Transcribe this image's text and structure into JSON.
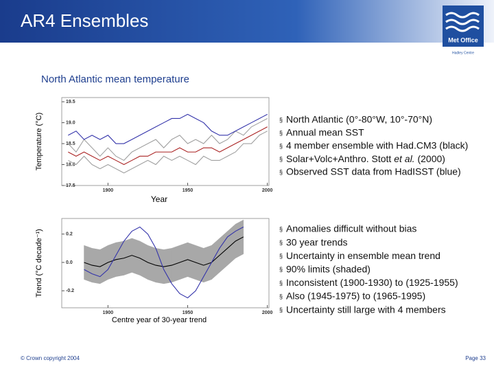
{
  "header": {
    "title": "AR4 Ensembles",
    "logo_text": "Met Office",
    "logo_subtext": "Hadley Centre"
  },
  "chart_data": [
    {
      "type": "line",
      "title": "North Atlantic mean temperature",
      "xlabel": "Year",
      "ylabel": "Temperature (°C)",
      "xlim": [
        1871,
        2001
      ],
      "xticks": [
        1900,
        1950,
        2000
      ],
      "ylim": [
        17.5,
        19.6
      ],
      "yticks": [
        17.5,
        {
          "value": 18,
          "label": "18.0"
        },
        18.5,
        {
          "value": 19,
          "label": "19.0"
        },
        19.5
      ],
      "x": [
        1875,
        1880,
        1885,
        1890,
        1895,
        1900,
        1905,
        1910,
        1915,
        1920,
        1925,
        1930,
        1935,
        1940,
        1945,
        1950,
        1955,
        1960,
        1965,
        1970,
        1975,
        1980,
        1985,
        1990,
        1995,
        2000
      ],
      "series": [
        {
          "color": "#a0a0a0",
          "values": [
            18.5,
            18.3,
            18.6,
            18.4,
            18.2,
            18.4,
            18.2,
            18.1,
            18.3,
            18.4,
            18.5,
            18.6,
            18.4,
            18.6,
            18.7,
            18.5,
            18.6,
            18.5,
            18.7,
            18.5,
            18.6,
            18.8,
            18.7,
            18.9,
            19.0,
            19.1
          ]
        },
        {
          "color": "#a0a0a0",
          "values": [
            18.1,
            18.0,
            18.2,
            18.0,
            17.9,
            18.0,
            17.9,
            17.8,
            17.9,
            18.0,
            18.1,
            18.0,
            18.2,
            18.1,
            18.2,
            18.1,
            18.0,
            18.2,
            18.1,
            18.1,
            18.2,
            18.3,
            18.5,
            18.5,
            18.7,
            18.8
          ]
        },
        {
          "color": "#aa2222",
          "values": [
            18.3,
            18.2,
            18.3,
            18.2,
            18.1,
            18.2,
            18.1,
            18.0,
            18.1,
            18.2,
            18.2,
            18.3,
            18.3,
            18.3,
            18.4,
            18.3,
            18.3,
            18.4,
            18.4,
            18.3,
            18.4,
            18.5,
            18.6,
            18.7,
            18.8,
            18.9
          ]
        },
        {
          "color": "#3333aa",
          "values": [
            18.7,
            18.8,
            18.6,
            18.7,
            18.6,
            18.7,
            18.5,
            18.5,
            18.6,
            18.7,
            18.8,
            18.9,
            19.0,
            19.1,
            19.1,
            19.2,
            19.1,
            19.0,
            18.8,
            18.7,
            18.7,
            18.8,
            18.9,
            19.0,
            19.1,
            19.2
          ]
        }
      ]
    },
    {
      "type": "line",
      "xlabel": "Centre year of 30-year trend",
      "ylabel": "Trend (°C decade⁻¹)",
      "xlim": [
        1871,
        2001
      ],
      "xticks": [
        1900,
        1950,
        2000
      ],
      "ylim": [
        -0.32,
        0.31
      ],
      "yticks": [
        -0.2,
        {
          "value": 0,
          "label": "0.0"
        },
        0.2
      ],
      "x": [
        1885,
        1890,
        1895,
        1900,
        1905,
        1910,
        1915,
        1920,
        1925,
        1930,
        1935,
        1940,
        1945,
        1950,
        1955,
        1960,
        1965,
        1970,
        1975,
        1980,
        1985
      ],
      "band": {
        "color": "#a8a8a8",
        "lower": [
          -0.12,
          -0.14,
          -0.15,
          -0.12,
          -0.1,
          -0.09,
          -0.07,
          -0.09,
          -0.12,
          -0.14,
          -0.15,
          -0.14,
          -0.12,
          -0.1,
          -0.12,
          -0.14,
          -0.12,
          -0.07,
          -0.02,
          0.03,
          0.06
        ],
        "upper": [
          0.12,
          0.1,
          0.09,
          0.12,
          0.14,
          0.15,
          0.17,
          0.15,
          0.12,
          0.1,
          0.09,
          0.1,
          0.12,
          0.14,
          0.12,
          0.1,
          0.12,
          0.17,
          0.22,
          0.27,
          0.3
        ]
      },
      "series": [
        {
          "color": "#000000",
          "values": [
            0.0,
            -0.02,
            -0.03,
            0.0,
            0.02,
            0.03,
            0.05,
            0.03,
            0.0,
            -0.02,
            -0.03,
            -0.02,
            0.0,
            0.02,
            0.0,
            -0.02,
            0.0,
            0.05,
            0.1,
            0.15,
            0.18
          ]
        },
        {
          "color": "#3333aa",
          "values": [
            -0.05,
            -0.08,
            -0.1,
            -0.05,
            0.05,
            0.15,
            0.22,
            0.25,
            0.2,
            0.1,
            -0.05,
            -0.15,
            -0.22,
            -0.25,
            -0.2,
            -0.1,
            0.0,
            0.1,
            0.18,
            0.22,
            0.25
          ]
        }
      ]
    }
  ],
  "bullets1": [
    "North Atlantic (0°-80°W, 10°-70°N)",
    "Annual mean SST",
    "4 member ensemble with Had.CM3 (black)",
    [
      "Solar+Volc+Anthro. Stott ",
      "et al.",
      " (2000)"
    ],
    "Observed SST data from HadISST (blue)"
  ],
  "bullets2": [
    "Anomalies difficult without bias",
    "30 year trends",
    "Uncertainty in ensemble mean trend",
    "90% limits (shaded)",
    "Inconsistent (1900-1930) to (1925-1955)",
    "Also (1945-1975) to (1965-1995)",
    "Uncertainty still large with 4 members"
  ],
  "footer": {
    "copyright": "© Crown copyright 2004",
    "page": "Page 33"
  }
}
